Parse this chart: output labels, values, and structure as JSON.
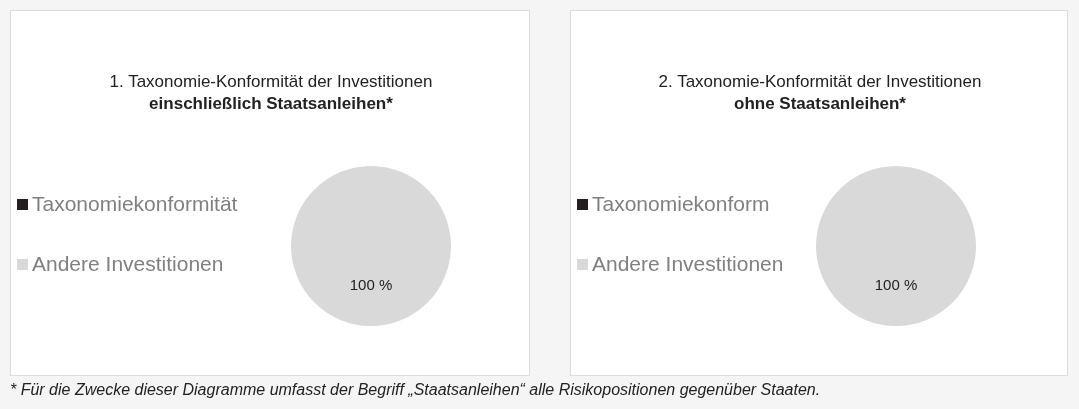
{
  "chart_data": [
    {
      "type": "pie",
      "title": "1. Taxonomie-Konformität der Investitionen",
      "subtitle": "einschließlich Staatsanleihen*",
      "categories": [
        "Taxonomiekonformität",
        "Andere Investitionen"
      ],
      "values": [
        0,
        100
      ],
      "colors": [
        "#231f20",
        "#d9d9d9"
      ],
      "value_labels": [
        null,
        "100 %"
      ],
      "legend": "left"
    },
    {
      "type": "pie",
      "title": "2. Taxonomie-Konformität der Investitionen",
      "subtitle": "ohne Staatsanleihen*",
      "categories": [
        "Taxonomiekonform",
        "Andere Investitionen"
      ],
      "values": [
        0,
        100
      ],
      "colors": [
        "#231f20",
        "#d9d9d9"
      ],
      "value_labels": [
        null,
        "100 %"
      ],
      "legend": "left",
      "annotations": [
        "* Für die Zwecke dieser Diagramme umfasst der Begriff „Staatsanleihen“ alle Risikopositionen gegenüber Staaten."
      ]
    }
  ]
}
